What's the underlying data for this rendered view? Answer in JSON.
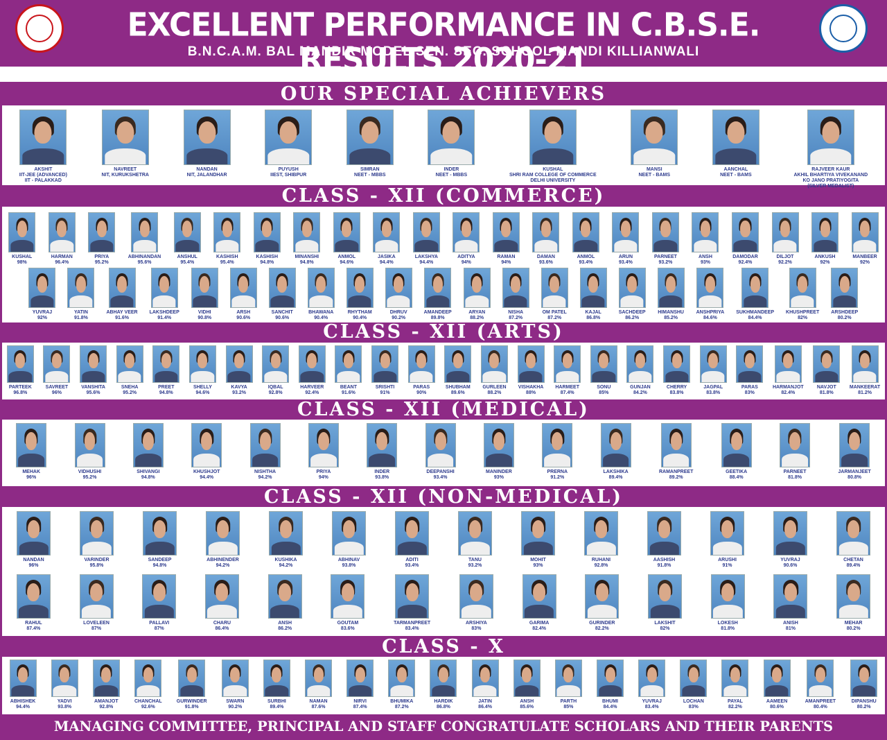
{
  "header": {
    "title": "EXCELLENT PERFORMANCE IN C.B.S.E. RESULTS 2020-21",
    "subtitle": "B.N.C.A.M. BAL MANDIR MODEL SEN. SEC. SCHOOL MANDI KILLIANWALI"
  },
  "sections": {
    "special": {
      "title": "OUR SPECIAL ACHIEVERS",
      "students": [
        {
          "name": "AKSHIT",
          "lines": [
            "IIT-JEE (ADVANCED)",
            "IIT - PALAKKAD"
          ]
        },
        {
          "name": "NAVREET",
          "lines": [
            "NIT, KURUKSHETRA"
          ]
        },
        {
          "name": "NANDAN",
          "lines": [
            "NIT, JALANDHAR"
          ]
        },
        {
          "name": "PUYUSH",
          "lines": [
            "IIEST, SHIBPUR"
          ]
        },
        {
          "name": "SIMRAN",
          "lines": [
            "NEET - MBBS"
          ]
        },
        {
          "name": "INDER",
          "lines": [
            "NEET - MBBS"
          ]
        },
        {
          "name": "KUSHAL",
          "lines": [
            "SHRI RAM COLLEGE OF COMMERCE",
            "DELHI UNIVERSITY"
          ]
        },
        {
          "name": "MANSI",
          "lines": [
            "NEET - BAMS"
          ]
        },
        {
          "name": "AANCHAL",
          "lines": [
            "NEET - BAMS"
          ]
        },
        {
          "name": "RAJVEER KAUR",
          "lines": [
            "AKHIL BHARTIYA VIVEKANAND",
            "KO JANO PRATIYOGITA",
            "(SILVER MEDALIST)"
          ]
        }
      ]
    },
    "commerce": {
      "title": "CLASS - XII (COMMERCE)",
      "row1": [
        {
          "name": "KUSHAL",
          "pct": "98%"
        },
        {
          "name": "HARMAN",
          "pct": "96.4%"
        },
        {
          "name": "PRIYA",
          "pct": "95.2%"
        },
        {
          "name": "ABHINANDAN",
          "pct": "95.6%"
        },
        {
          "name": "ANSHUL",
          "pct": "95.4%"
        },
        {
          "name": "KASHISH",
          "pct": "95.4%"
        },
        {
          "name": "KASHISH",
          "pct": "94.8%"
        },
        {
          "name": "MINANSHI",
          "pct": "94.8%"
        },
        {
          "name": "ANMOL",
          "pct": "94.6%"
        },
        {
          "name": "JASIKA",
          "pct": "94.4%"
        },
        {
          "name": "LAKSHYA",
          "pct": "94.4%"
        },
        {
          "name": "ADITYA",
          "pct": "94%"
        },
        {
          "name": "RAMAN",
          "pct": "94%"
        },
        {
          "name": "DAMAN",
          "pct": "93.6%"
        },
        {
          "name": "ANMOL",
          "pct": "93.4%"
        },
        {
          "name": "ARUN",
          "pct": "93.4%"
        },
        {
          "name": "PARNEET",
          "pct": "93.2%"
        },
        {
          "name": "ANSH",
          "pct": "93%"
        },
        {
          "name": "DAMODAR",
          "pct": "92.4%"
        },
        {
          "name": "DILJOT",
          "pct": "92.2%"
        },
        {
          "name": "ANKUSH",
          "pct": "92%"
        },
        {
          "name": "MANBEER",
          "pct": "92%"
        }
      ],
      "row2": [
        {
          "name": "YUVRAJ",
          "pct": "92%"
        },
        {
          "name": "YATIN",
          "pct": "91.8%"
        },
        {
          "name": "ABHAY VEER",
          "pct": "91.6%"
        },
        {
          "name": "LAKSHDEEP",
          "pct": "91.4%"
        },
        {
          "name": "VIDHI",
          "pct": "90.8%"
        },
        {
          "name": "ARSH",
          "pct": "90.6%"
        },
        {
          "name": "SANCHIT",
          "pct": "90.6%"
        },
        {
          "name": "BHAWANA",
          "pct": "90.4%"
        },
        {
          "name": "RHYTHAM",
          "pct": "90.4%"
        },
        {
          "name": "DHRUV",
          "pct": "90.2%"
        },
        {
          "name": "AMANDEEP",
          "pct": "89.8%"
        },
        {
          "name": "ARYAN",
          "pct": "88.2%"
        },
        {
          "name": "NISHA",
          "pct": "87.2%"
        },
        {
          "name": "OM PATEL",
          "pct": "87.2%"
        },
        {
          "name": "KAJAL",
          "pct": "86.8%"
        },
        {
          "name": "SACHDEEP",
          "pct": "86.2%"
        },
        {
          "name": "HIMANSHU",
          "pct": "85.2%"
        },
        {
          "name": "ANSHPRIYA",
          "pct": "84.6%"
        },
        {
          "name": "SUKHMANDEEP",
          "pct": "84.4%"
        },
        {
          "name": "KHUSHPREET",
          "pct": "82%"
        },
        {
          "name": "ARSHDEEP",
          "pct": "80.2%"
        }
      ]
    },
    "arts": {
      "title": "CLASS - XII (ARTS)",
      "row1": [
        {
          "name": "PARTEEK",
          "pct": "96.8%"
        },
        {
          "name": "SAVREET",
          "pct": "96%"
        },
        {
          "name": "VANSHITA",
          "pct": "95.6%"
        },
        {
          "name": "SNEHA",
          "pct": "95.2%"
        },
        {
          "name": "PREET",
          "pct": "94.8%"
        },
        {
          "name": "SHELLY",
          "pct": "94.6%"
        },
        {
          "name": "KAVYA",
          "pct": "93.2%"
        },
        {
          "name": "IQBAL",
          "pct": "92.8%"
        },
        {
          "name": "HARVEER",
          "pct": "92.4%"
        },
        {
          "name": "BEANT",
          "pct": "91.6%"
        },
        {
          "name": "SRISHTI",
          "pct": "91%"
        },
        {
          "name": "PARAS",
          "pct": "90%"
        },
        {
          "name": "SHUBHAM",
          "pct": "89.6%"
        },
        {
          "name": "GURLEEN",
          "pct": "88.2%"
        },
        {
          "name": "VISHAKHA",
          "pct": "88%"
        },
        {
          "name": "HARMEET",
          "pct": "87.4%"
        },
        {
          "name": "SONU",
          "pct": "85%"
        },
        {
          "name": "GUNJAN",
          "pct": "84.2%"
        },
        {
          "name": "CHERRY",
          "pct": "83.8%"
        },
        {
          "name": "JAGPAL",
          "pct": "83.8%"
        },
        {
          "name": "PARAS",
          "pct": "83%"
        },
        {
          "name": "HARMANJOT",
          "pct": "82.4%"
        },
        {
          "name": "NAVJOT",
          "pct": "81.8%"
        },
        {
          "name": "MANKEERAT",
          "pct": "81.2%"
        }
      ]
    },
    "medical": {
      "title": "CLASS - XII (MEDICAL)",
      "row1": [
        {
          "name": "MEHAK",
          "pct": "96%"
        },
        {
          "name": "VIDHUSHI",
          "pct": "95.2%"
        },
        {
          "name": "SHIVANGI",
          "pct": "94.8%"
        },
        {
          "name": "KHUSHJOT",
          "pct": "94.4%"
        },
        {
          "name": "NISHTHA",
          "pct": "94.2%"
        },
        {
          "name": "PRIYA",
          "pct": "94%"
        },
        {
          "name": "INDER",
          "pct": "93.8%"
        },
        {
          "name": "DEEPANSHI",
          "pct": "93.4%"
        },
        {
          "name": "MANINDER",
          "pct": "93%"
        },
        {
          "name": "PRERNA",
          "pct": "91.2%"
        },
        {
          "name": "LAKSHIKA",
          "pct": "89.4%"
        },
        {
          "name": "RAMANPREET",
          "pct": "89.2%"
        },
        {
          "name": "GEETIKA",
          "pct": "88.4%"
        },
        {
          "name": "PARNEET",
          "pct": "81.8%"
        },
        {
          "name": "JARMANJEET",
          "pct": "80.8%"
        }
      ]
    },
    "nonmedical": {
      "title": "CLASS - XII (NON-MEDICAL)",
      "row1": [
        {
          "name": "NANDAN",
          "pct": "96%"
        },
        {
          "name": "VARINDER",
          "pct": "95.8%"
        },
        {
          "name": "SANDEEP",
          "pct": "94.8%"
        },
        {
          "name": "ABHINENDER",
          "pct": "94.2%"
        },
        {
          "name": "KUSHIKA",
          "pct": "94.2%"
        },
        {
          "name": "ABHINAV",
          "pct": "93.8%"
        },
        {
          "name": "ADITI",
          "pct": "93.4%"
        },
        {
          "name": "TANU",
          "pct": "93.2%"
        },
        {
          "name": "MOHIT",
          "pct": "93%"
        },
        {
          "name": "RUHANI",
          "pct": "92.8%"
        },
        {
          "name": "AASHISH",
          "pct": "91.8%"
        },
        {
          "name": "ARUSHI",
          "pct": "91%"
        },
        {
          "name": "YUVRAJ",
          "pct": "90.6%"
        },
        {
          "name": "CHETAN",
          "pct": "89.4%"
        }
      ],
      "row2": [
        {
          "name": "RAHUL",
          "pct": "87.4%"
        },
        {
          "name": "LOVELEEN",
          "pct": "87%"
        },
        {
          "name": "PALLAVI",
          "pct": "87%"
        },
        {
          "name": "CHARU",
          "pct": "86.4%"
        },
        {
          "name": "ANSH",
          "pct": "86.2%"
        },
        {
          "name": "GOUTAM",
          "pct": "83.6%"
        },
        {
          "name": "TARMANPREET",
          "pct": "83.4%"
        },
        {
          "name": "ARSHIYA",
          "pct": "83%"
        },
        {
          "name": "GARIMA",
          "pct": "82.4%"
        },
        {
          "name": "GURINDER",
          "pct": "82.2%"
        },
        {
          "name": "LAKSHIT",
          "pct": "82%"
        },
        {
          "name": "LOKESH",
          "pct": "81.8%"
        },
        {
          "name": "ANISH",
          "pct": "81%"
        },
        {
          "name": "MEHAR",
          "pct": "80.2%"
        }
      ]
    },
    "classx": {
      "title": "CLASS - X",
      "row1": [
        {
          "name": "ABHISHEK",
          "pct": "94.4%"
        },
        {
          "name": "YADVI",
          "pct": "93.8%"
        },
        {
          "name": "AMANJOT",
          "pct": "92.8%"
        },
        {
          "name": "CHANCHAL",
          "pct": "92.6%"
        },
        {
          "name": "GURWINDER",
          "pct": "91.8%"
        },
        {
          "name": "SWARN",
          "pct": "90.2%"
        },
        {
          "name": "SURBHI",
          "pct": "89.4%"
        },
        {
          "name": "NAMAN",
          "pct": "87.6%"
        },
        {
          "name": "NIRVI",
          "pct": "87.4%"
        },
        {
          "name": "BHUMIKA",
          "pct": "87.2%"
        },
        {
          "name": "HARDIK",
          "pct": "86.8%"
        },
        {
          "name": "JATIN",
          "pct": "86.4%"
        },
        {
          "name": "ANSH",
          "pct": "85.6%"
        },
        {
          "name": "PARTH",
          "pct": "85%"
        },
        {
          "name": "BHUMI",
          "pct": "84.4%"
        },
        {
          "name": "YUVRAJ",
          "pct": "83.4%"
        },
        {
          "name": "LOCHAN",
          "pct": "83%"
        },
        {
          "name": "PAYAL",
          "pct": "82.2%"
        },
        {
          "name": "AAMEEN",
          "pct": "80.6%"
        },
        {
          "name": "AMANPREET",
          "pct": "80.4%"
        },
        {
          "name": "DIPANSHU",
          "pct": "80.2%"
        }
      ]
    }
  },
  "footer": "MANAGING COMMITTEE, PRINCIPAL AND STAFF CONGRATULATE SCHOLARS AND THEIR PARENTS"
}
